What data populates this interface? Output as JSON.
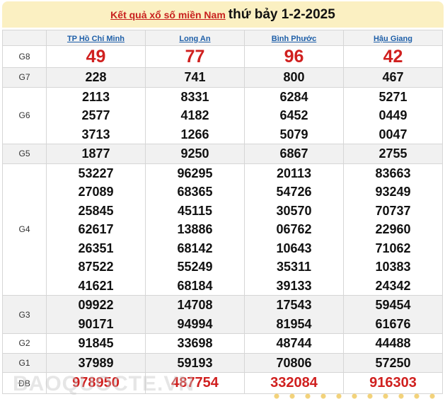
{
  "header": {
    "link": "Kết quả xổ số miền Nam",
    "date": "thứ bảy 1-2-2025"
  },
  "provinces": [
    "TP Hồ Chí Minh",
    "Long An",
    "Bình Phước",
    "Hậu Giang"
  ],
  "rows": [
    {
      "label": "G8",
      "values": [
        [
          "49"
        ],
        [
          "77"
        ],
        [
          "96"
        ],
        [
          "42"
        ]
      ]
    },
    {
      "label": "G7",
      "values": [
        [
          "228"
        ],
        [
          "741"
        ],
        [
          "800"
        ],
        [
          "467"
        ]
      ]
    },
    {
      "label": "G6",
      "values": [
        [
          "2113",
          "2577",
          "3713"
        ],
        [
          "8331",
          "4182",
          "1266"
        ],
        [
          "6284",
          "6452",
          "5079"
        ],
        [
          "5271",
          "0449",
          "0047"
        ]
      ]
    },
    {
      "label": "G5",
      "values": [
        [
          "1877"
        ],
        [
          "9250"
        ],
        [
          "6867"
        ],
        [
          "2755"
        ]
      ]
    },
    {
      "label": "G4",
      "values": [
        [
          "53227",
          "27089",
          "25845",
          "62617",
          "26351",
          "87522",
          "41621"
        ],
        [
          "96295",
          "68365",
          "45115",
          "13886",
          "68142",
          "55249",
          "68184"
        ],
        [
          "20113",
          "54726",
          "30570",
          "06762",
          "10643",
          "35311",
          "39133"
        ],
        [
          "83663",
          "93249",
          "70737",
          "22960",
          "71062",
          "10383",
          "24342"
        ]
      ]
    },
    {
      "label": "G3",
      "values": [
        [
          "09922",
          "90171"
        ],
        [
          "14708",
          "94994"
        ],
        [
          "17543",
          "81954"
        ],
        [
          "59454",
          "61676"
        ]
      ]
    },
    {
      "label": "G2",
      "values": [
        [
          "91845"
        ],
        [
          "33698"
        ],
        [
          "48744"
        ],
        [
          "44488"
        ]
      ]
    },
    {
      "label": "G1",
      "values": [
        [
          "37989"
        ],
        [
          "59193"
        ],
        [
          "70806"
        ],
        [
          "57250"
        ]
      ]
    },
    {
      "label": "ĐB",
      "values": [
        [
          "978950"
        ],
        [
          "487754"
        ],
        [
          "332084"
        ],
        [
          "916303"
        ]
      ]
    }
  ],
  "watermark": "BAOQUOCTE.VN"
}
